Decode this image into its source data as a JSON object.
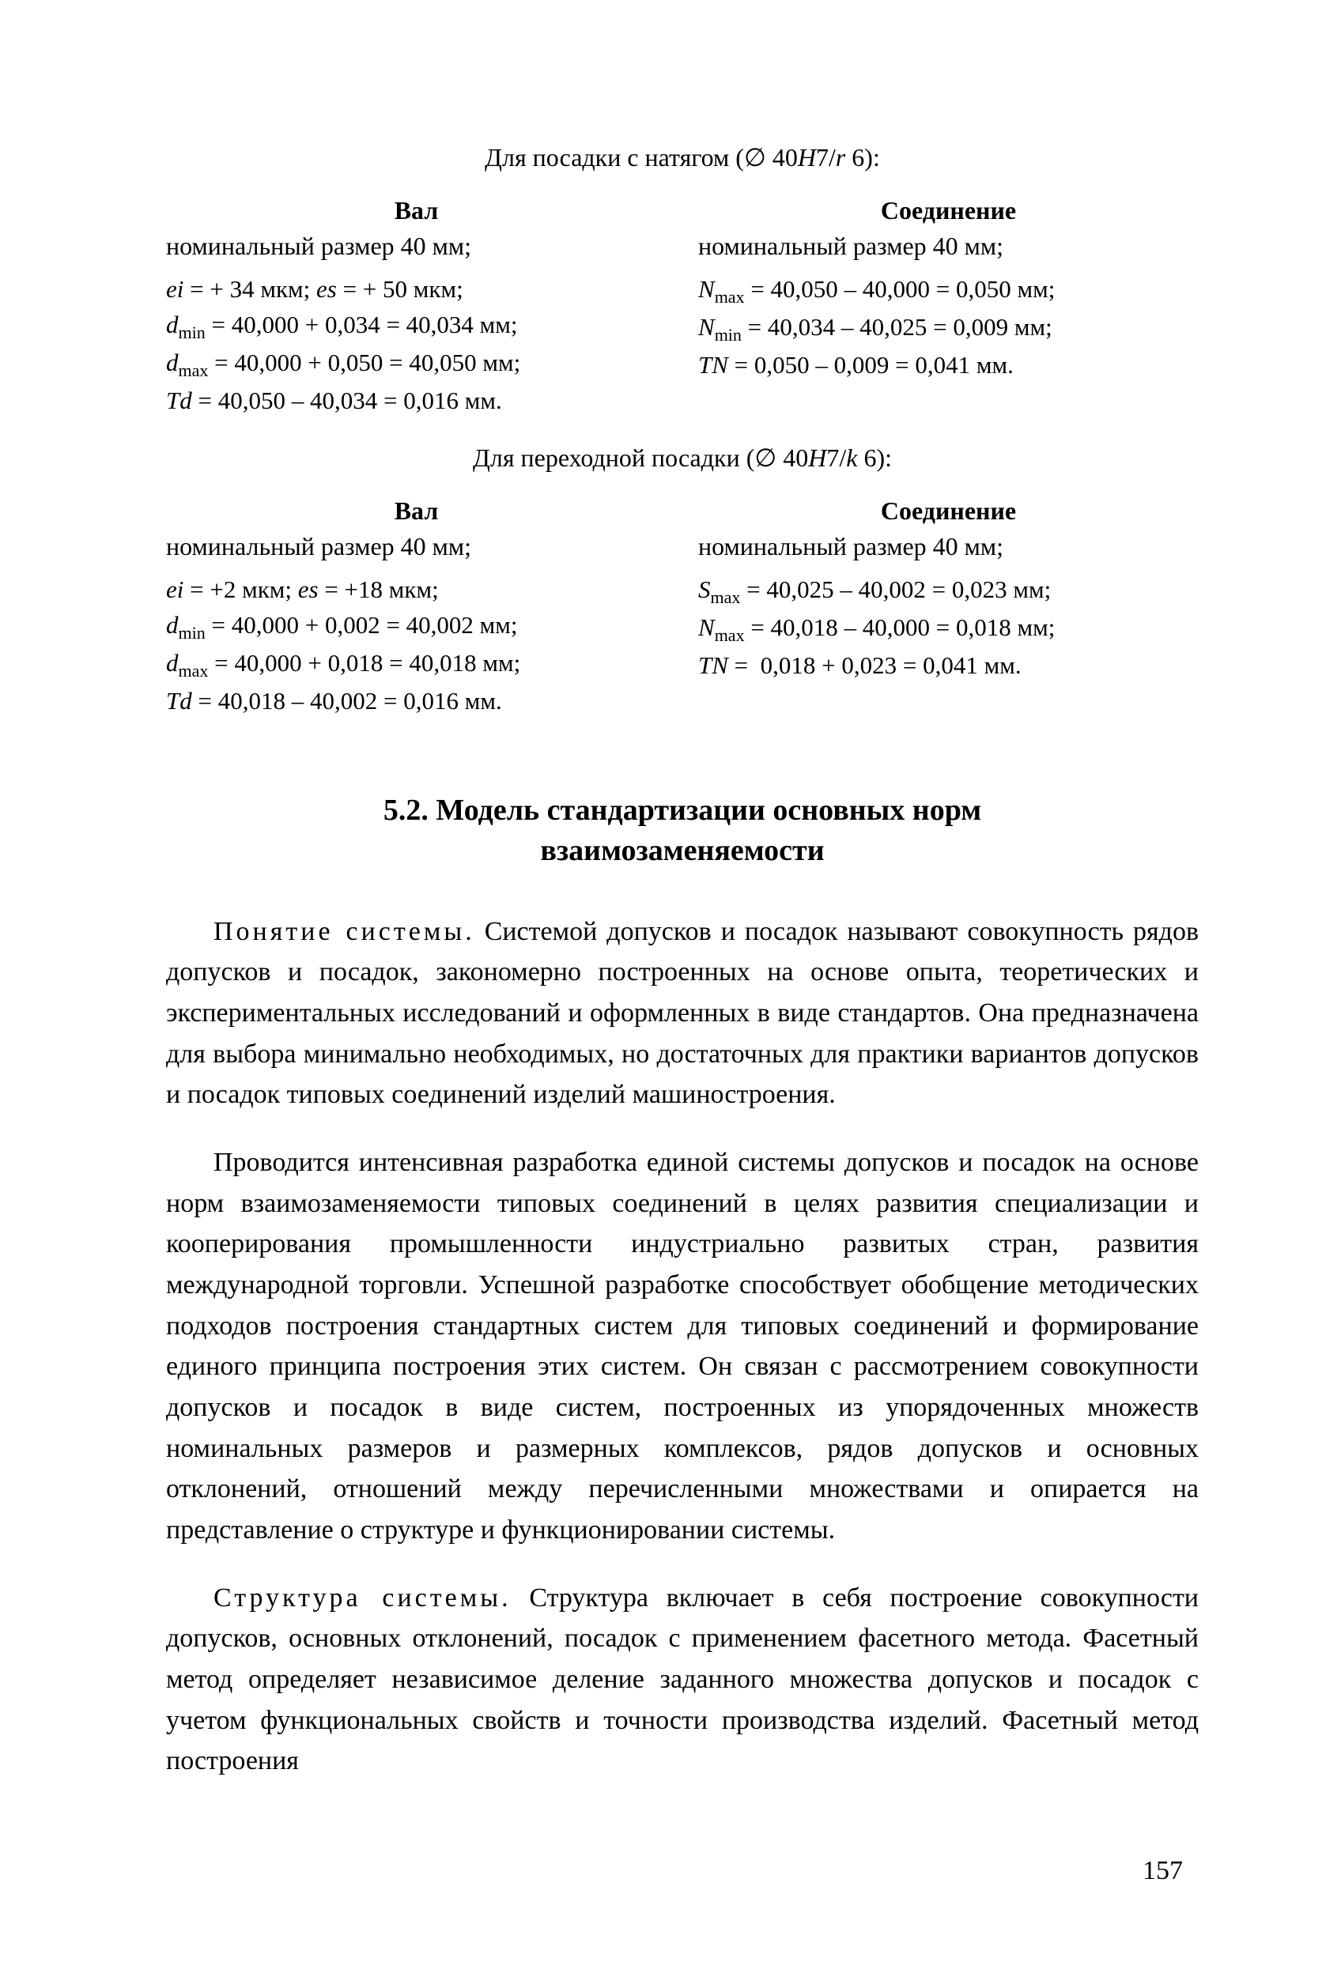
{
  "fit1": {
    "header": "Для посадки с натягом (∅ 40H7/r 6):",
    "shaft": {
      "title": "Вал",
      "nominal": "номинальный размер 40 мм;",
      "ei_es": "ei = + 34 мкм; es = + 50 мкм;",
      "dmin": "d_min = 40,000 + 0,034 = 40,034 мм;",
      "dmax": "d_max = 40,000 + 0,050 = 40,050 мм;",
      "Td": "Td = 40,050 – 40,034 = 0,016 мм."
    },
    "joint": {
      "title": "Соединение",
      "nominal": "номинальный размер 40 мм;",
      "Nmax": "N_max = 40,050 – 40,000 = 0,050 мм;",
      "Nmin": "N_min = 40,034 – 40,025 = 0,009 мм;",
      "TN": "TN = 0,050 – 0,009 = 0,041 мм."
    }
  },
  "fit2": {
    "header": "Для переходной посадки (∅ 40H7/k 6):",
    "shaft": {
      "title": "Вал",
      "nominal": "номинальный размер 40 мм;",
      "ei_es": "ei = +2 мкм; es = +18 мкм;",
      "dmin": "d_min = 40,000 + 0,002 = 40,002 мм;",
      "dmax": "d_max = 40,000 + 0,018 = 40,018 мм;",
      "Td": "Td = 40,018 – 40,002 = 0,016 мм."
    },
    "joint": {
      "title": "Соединение",
      "nominal": "номинальный размер 40 мм;",
      "Smax": "S_max = 40,025 – 40,002 = 0,023 мм;",
      "Nmax": "N_max = 40,018 – 40,000 = 0,018 мм;",
      "TN": "TN =  0,018 + 0,023 = 0,041 мм."
    }
  },
  "section_heading": "5.2. Модель стандартизации основных норм взаимозаменяемости",
  "para1_lead": "Понятие системы.",
  "para1_rest": " Системой допусков и посадок называют совокупность рядов допусков и посадок, закономерно построенных на основе опыта, теоретических и экспериментальных исследований и оформленных в виде стандартов. Она предназначена для выбора минимально необходимых, но достаточных для практики вариантов допусков и посадок типовых соединений изделий машиностроения.",
  "para2": "Проводится интенсивная разработка единой системы допусков и посадок на основе норм взаимозаменяемости типовых соединений в целях развития специализации и кооперирования промышленности индустриально развитых стран, развития международной торговли. Успешной разработке способствует обобщение методических подходов построения стандартных систем для типовых соединений и формирование единого принципа построения этих систем. Он связан с рассмотрением совокупности допусков и посадок в виде систем, построенных из упорядоченных множеств номинальных размеров и размерных комплексов, рядов допусков и основных отклонений, отношений между перечисленными множествами и опирается на представление о структуре и функционировании системы.",
  "para3_lead": "Структура системы.",
  "para3_rest": " Структура включает в себя построение совокупности допусков, основных отклонений, посадок с применением фасетного метода. Фасетный метод определяет независимое деление заданного множества допусков и посадок с учетом функциональных свойств и точности производства изделий. Фасетный метод построения",
  "page_number": "157"
}
